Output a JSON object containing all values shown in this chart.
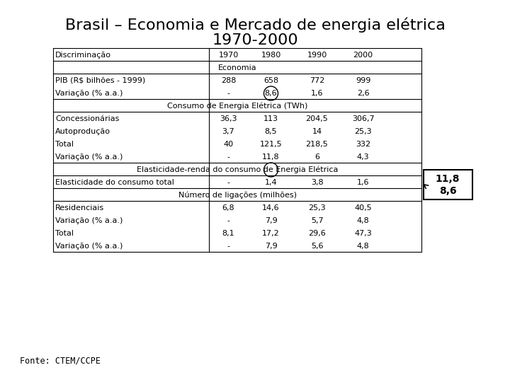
{
  "title_line1": "Brasil – Economia e Mercado de energia elétrica",
  "title_line2": "1970-2000",
  "fonte": "Fonte: CTEM/CCPE",
  "annotation_values": [
    "11,8",
    "8,6"
  ],
  "table": {
    "col_headers": [
      "Discriminação",
      "1970",
      "1980",
      "1990",
      "2000"
    ],
    "section_economia": "Economia",
    "rows_economia": [
      [
        "PIB (R$ bilhões - 1999)",
        "288",
        "658",
        "772",
        "999"
      ],
      [
        "Variação (% a.a.)",
        "-",
        "8,6",
        "1,6",
        "2,6"
      ]
    ],
    "section_consumo": "Consumo de Energia Elétrica (TWh)",
    "rows_consumo": [
      [
        "Concessionárias",
        "36,3",
        "113",
        "204,5",
        "306,7"
      ],
      [
        "Autoprodução",
        "3,7",
        "8,5",
        "14",
        "25,3"
      ],
      [
        "Total",
        "40",
        "121,5",
        "218,5",
        "332"
      ],
      [
        "Variação (% a.a.)",
        "-",
        "11,8",
        "6",
        "4,3"
      ]
    ],
    "section_elasticidade": "Elasticidade-renda do consumo de Energia Elétrica",
    "rows_elasticidade": [
      [
        "Elasticidade do consumo total",
        "-",
        "1,4",
        "3,8",
        "1,6"
      ]
    ],
    "section_ligacoes": "Número de ligações (milhões)",
    "rows_ligacoes": [
      [
        "Residenciais",
        "6,8",
        "14,6",
        "25,3",
        "40,5"
      ],
      [
        "Variação (% a.a.)",
        "-",
        "7,9",
        "5,7",
        "4,8"
      ],
      [
        "Total",
        "8,1",
        "17,2",
        "29,6",
        "47,3"
      ],
      [
        "Variação (% a.a.)",
        "-",
        "7,9",
        "5,6",
        "4,8"
      ]
    ]
  }
}
